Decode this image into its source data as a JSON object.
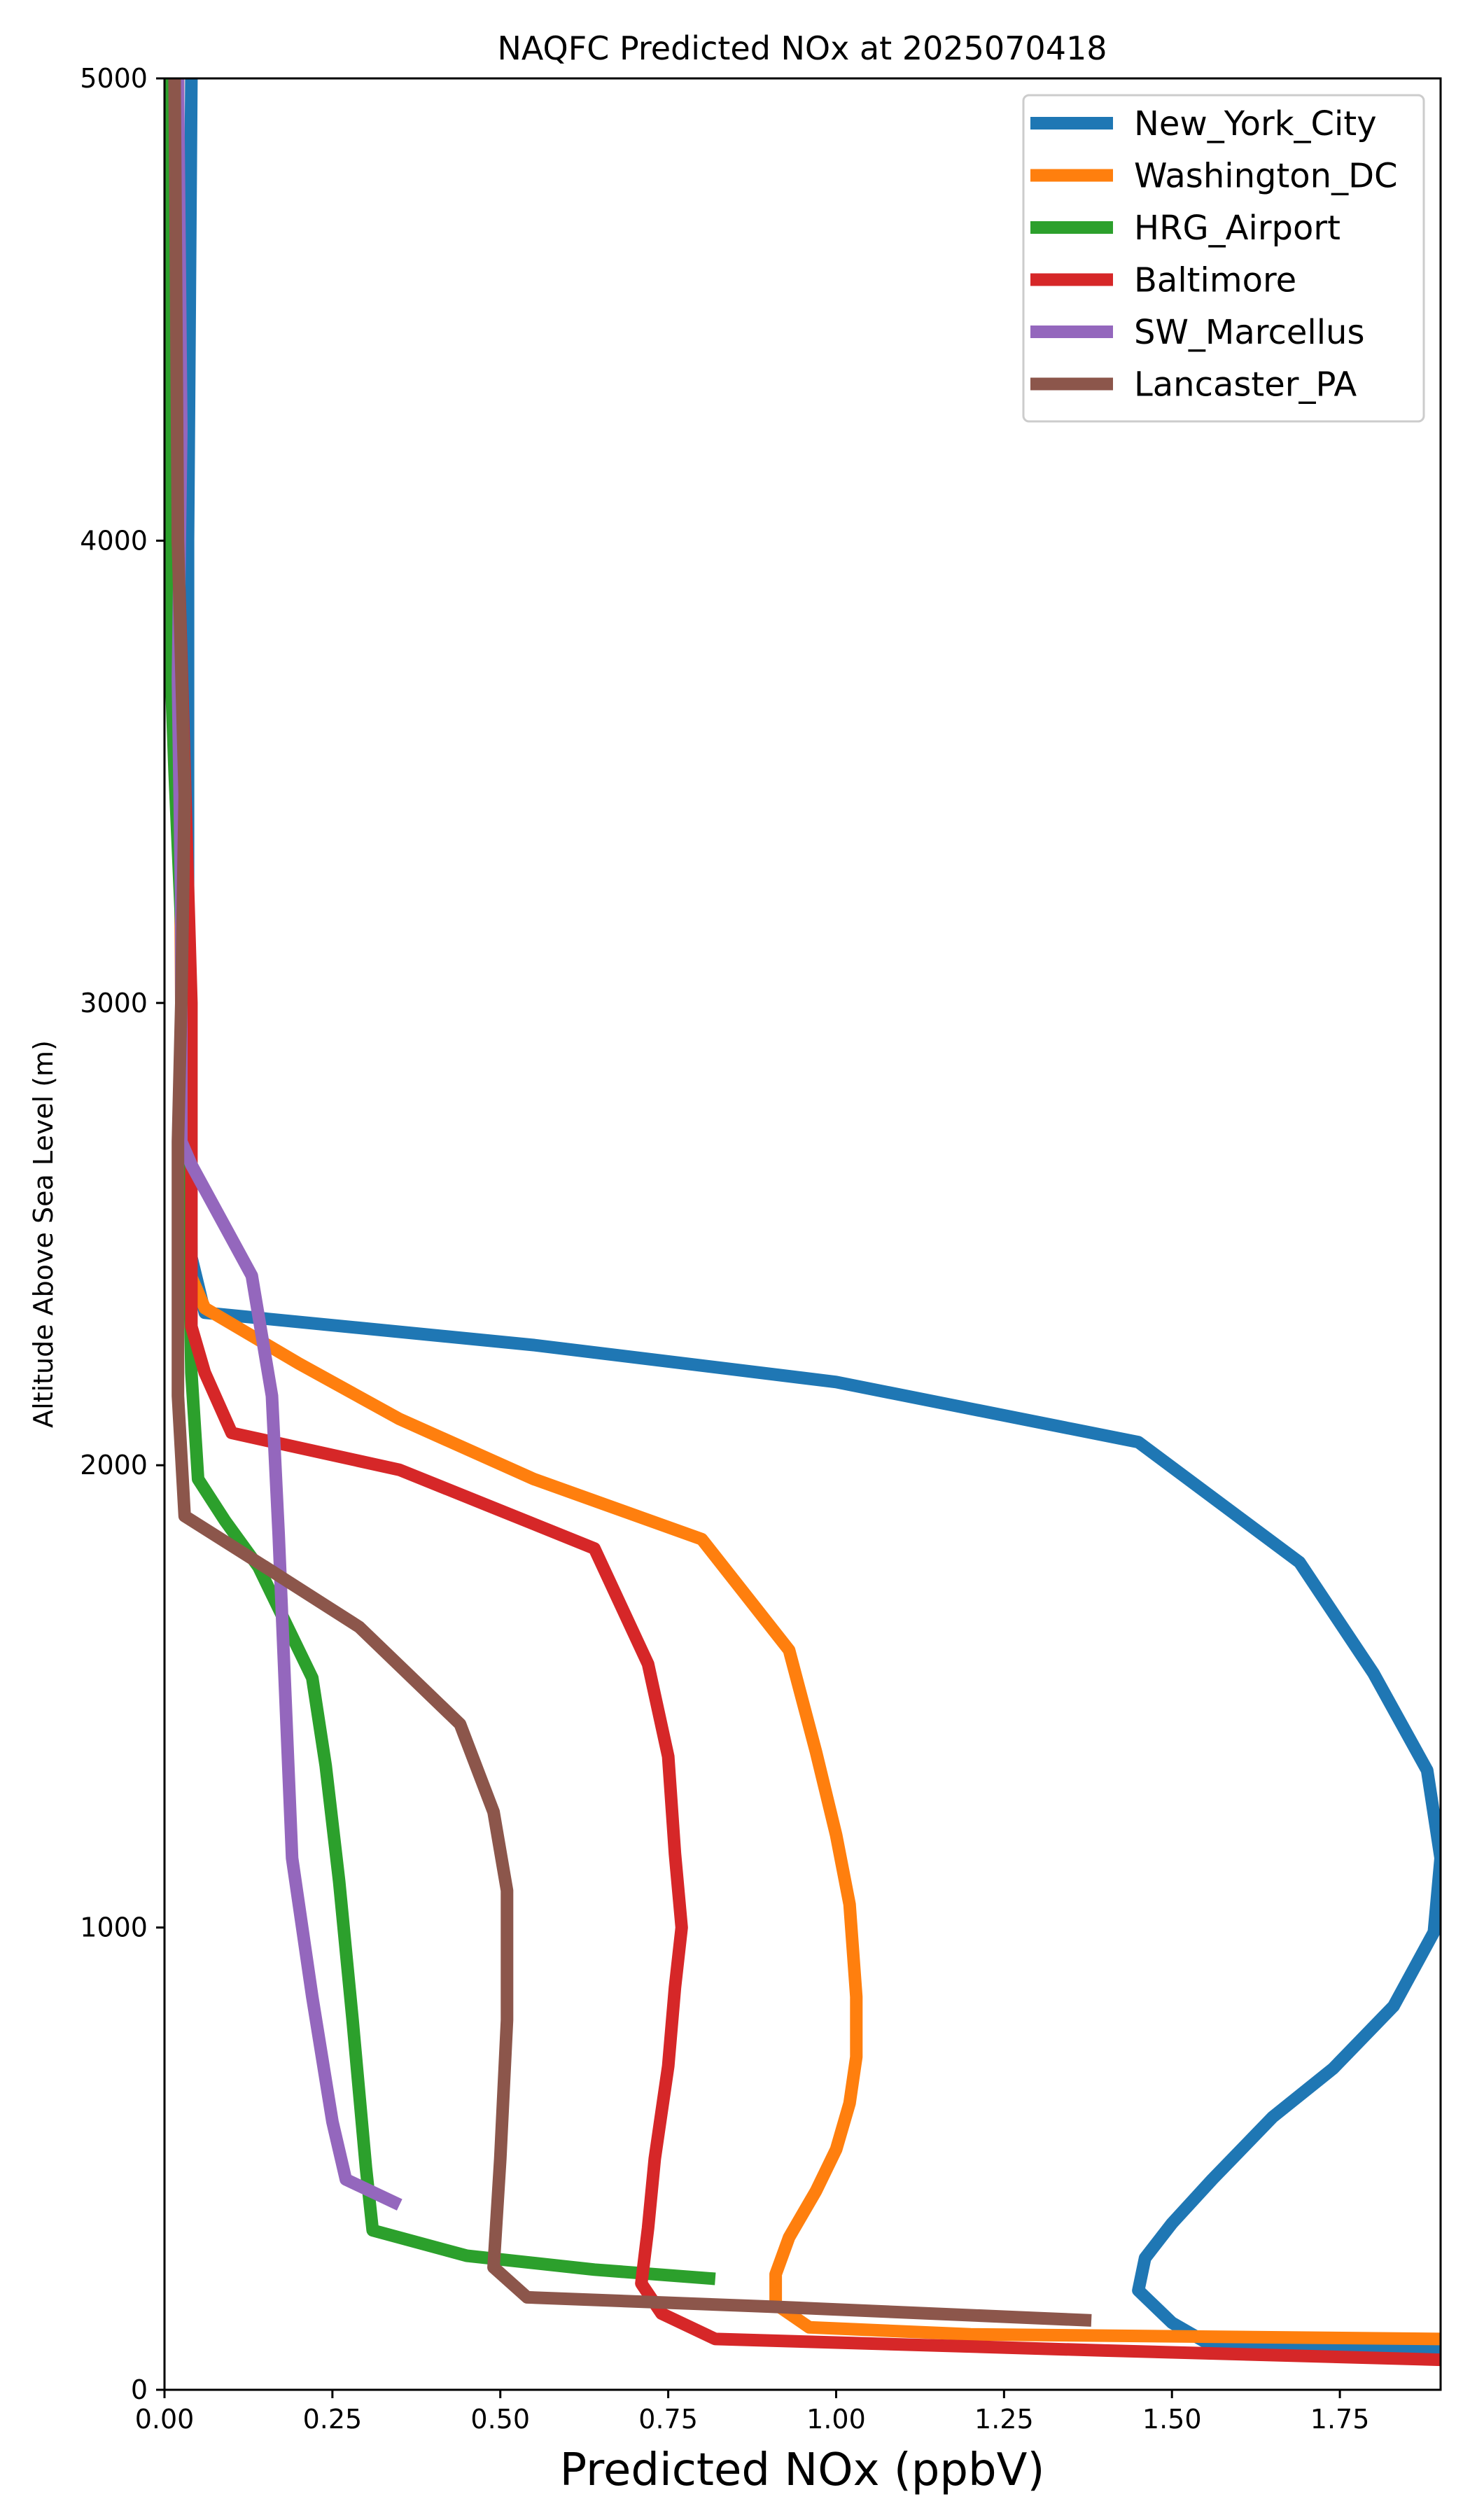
{
  "chart_data": {
    "type": "line",
    "title": "NAQFC Predicted NOx at 2025070418",
    "xlabel": "Predicted NOx (ppbV)",
    "ylabel": "Altitude Above Sea Level (m)",
    "xlim": [
      0,
      1.9
    ],
    "ylim": [
      0,
      5000
    ],
    "x_ticks": [
      {
        "value": 0,
        "label": "0.00"
      },
      {
        "value": 0.25,
        "label": "0.25"
      },
      {
        "value": 0.5,
        "label": "0.50"
      },
      {
        "value": 0.75,
        "label": "0.75"
      },
      {
        "value": 1.0,
        "label": "1.00"
      },
      {
        "value": 1.25,
        "label": "1.25"
      },
      {
        "value": 1.5,
        "label": "1.50"
      },
      {
        "value": 1.75,
        "label": "1.75"
      }
    ],
    "y_ticks": [
      {
        "value": 0,
        "label": "0"
      },
      {
        "value": 1000,
        "label": "1000"
      },
      {
        "value": 2000,
        "label": "2000"
      },
      {
        "value": 3000,
        "label": "3000"
      },
      {
        "value": 4000,
        "label": "4000"
      },
      {
        "value": 5000,
        "label": "5000"
      }
    ],
    "grid": false,
    "legend_position": "top-right",
    "series": [
      {
        "name": "New_York_City",
        "color": "#1f77b4",
        "points": [
          [
            1.9,
            85
          ],
          [
            1.56,
            95
          ],
          [
            1.5,
            145
          ],
          [
            1.45,
            215
          ],
          [
            1.46,
            285
          ],
          [
            1.5,
            360
          ],
          [
            1.56,
            455
          ],
          [
            1.65,
            590
          ],
          [
            1.74,
            695
          ],
          [
            1.83,
            830
          ],
          [
            1.89,
            990
          ],
          [
            1.9,
            1150
          ],
          [
            1.88,
            1340
          ],
          [
            1.8,
            1550
          ],
          [
            1.69,
            1790
          ],
          [
            1.45,
            2050
          ],
          [
            1.0,
            2180
          ],
          [
            0.55,
            2260
          ],
          [
            0.06,
            2330
          ],
          [
            0.04,
            2450
          ],
          [
            0.035,
            3000
          ],
          [
            0.035,
            4000
          ],
          [
            0.04,
            5000
          ]
        ]
      },
      {
        "name": "Washington_DC",
        "color": "#ff7f0e",
        "points": [
          [
            1.9,
            110
          ],
          [
            1.2,
            120
          ],
          [
            0.96,
            135
          ],
          [
            0.91,
            185
          ],
          [
            0.91,
            250
          ],
          [
            0.93,
            330
          ],
          [
            0.97,
            430
          ],
          [
            1.0,
            520
          ],
          [
            1.02,
            620
          ],
          [
            1.03,
            720
          ],
          [
            1.03,
            850
          ],
          [
            1.02,
            1050
          ],
          [
            1.0,
            1200
          ],
          [
            0.97,
            1380
          ],
          [
            0.93,
            1600
          ],
          [
            0.8,
            1840
          ],
          [
            0.55,
            1970
          ],
          [
            0.35,
            2100
          ],
          [
            0.2,
            2220
          ],
          [
            0.06,
            2340
          ],
          [
            0.03,
            2440
          ],
          [
            0.025,
            3000
          ],
          [
            0.02,
            4000
          ],
          [
            0.02,
            5000
          ]
        ]
      },
      {
        "name": "HRG_Airport",
        "color": "#2ca02c",
        "points": [
          [
            0.82,
            240
          ],
          [
            0.64,
            260
          ],
          [
            0.45,
            290
          ],
          [
            0.31,
            345
          ],
          [
            0.3,
            480
          ],
          [
            0.28,
            800
          ],
          [
            0.26,
            1100
          ],
          [
            0.24,
            1350
          ],
          [
            0.22,
            1540
          ],
          [
            0.14,
            1780
          ],
          [
            0.09,
            1880
          ],
          [
            0.05,
            1970
          ],
          [
            0.04,
            2200
          ],
          [
            0.035,
            2600
          ],
          [
            0.03,
            3000
          ],
          [
            0.015,
            3500
          ],
          [
            0.005,
            3900
          ],
          [
            0.005,
            5000
          ]
        ]
      },
      {
        "name": "Baltimore",
        "color": "#d62728",
        "points": [
          [
            1.9,
            65
          ],
          [
            1.4,
            85
          ],
          [
            0.82,
            110
          ],
          [
            0.74,
            165
          ],
          [
            0.71,
            230
          ],
          [
            0.72,
            350
          ],
          [
            0.73,
            500
          ],
          [
            0.75,
            700
          ],
          [
            0.76,
            870
          ],
          [
            0.77,
            1000
          ],
          [
            0.76,
            1160
          ],
          [
            0.75,
            1370
          ],
          [
            0.72,
            1570
          ],
          [
            0.64,
            1820
          ],
          [
            0.35,
            1990
          ],
          [
            0.1,
            2070
          ],
          [
            0.06,
            2200
          ],
          [
            0.04,
            2300
          ],
          [
            0.04,
            2700
          ],
          [
            0.04,
            3000
          ],
          [
            0.03,
            3500
          ],
          [
            0.02,
            4000
          ],
          [
            0.02,
            5000
          ]
        ]
      },
      {
        "name": "SW_Marcellus",
        "color": "#9467bd",
        "points": [
          [
            0.35,
            400
          ],
          [
            0.27,
            455
          ],
          [
            0.25,
            580
          ],
          [
            0.22,
            850
          ],
          [
            0.19,
            1150
          ],
          [
            0.18,
            1500
          ],
          [
            0.17,
            1850
          ],
          [
            0.16,
            2150
          ],
          [
            0.13,
            2410
          ],
          [
            0.04,
            2650
          ],
          [
            0.025,
            2700
          ],
          [
            0.025,
            3200
          ],
          [
            0.02,
            3700
          ],
          [
            0.025,
            4240
          ],
          [
            0.02,
            5000
          ]
        ]
      },
      {
        "name": "Lancaster_PA",
        "color": "#8c564b",
        "points": [
          [
            1.38,
            150
          ],
          [
            0.9,
            180
          ],
          [
            0.54,
            200
          ],
          [
            0.49,
            265
          ],
          [
            0.5,
            500
          ],
          [
            0.51,
            800
          ],
          [
            0.51,
            1080
          ],
          [
            0.49,
            1250
          ],
          [
            0.44,
            1440
          ],
          [
            0.29,
            1650
          ],
          [
            0.15,
            1780
          ],
          [
            0.03,
            1890
          ],
          [
            0.02,
            2150
          ],
          [
            0.02,
            2700
          ],
          [
            0.025,
            3000
          ],
          [
            0.03,
            3450
          ],
          [
            0.02,
            4000
          ],
          [
            0.015,
            5000
          ]
        ]
      }
    ]
  }
}
